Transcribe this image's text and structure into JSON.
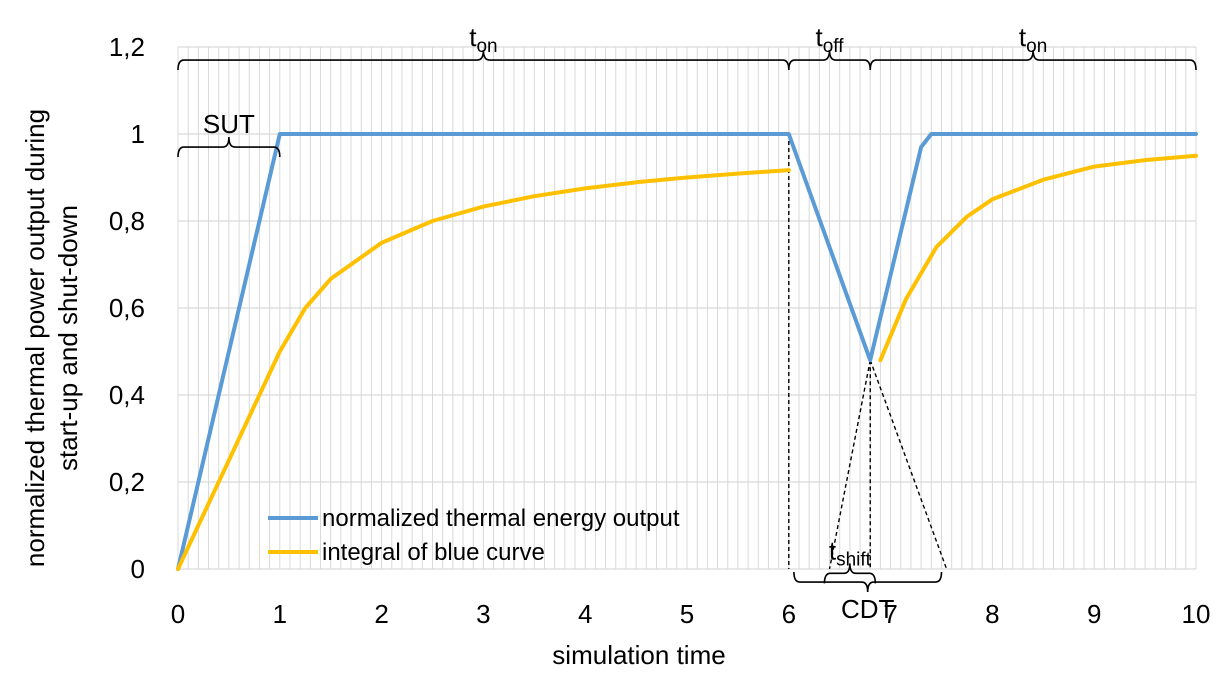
{
  "chart_data": {
    "type": "line",
    "title": "",
    "xlabel": "simulation time",
    "ylabel": [
      "normalized thermal power output during",
      "start-up and shut-down"
    ],
    "xlim": [
      0,
      10
    ],
    "ylim": [
      0,
      1.2
    ],
    "x_ticks": [
      {
        "value": 0,
        "label": "0"
      },
      {
        "value": 1,
        "label": "1"
      },
      {
        "value": 2,
        "label": "2"
      },
      {
        "value": 3,
        "label": "3"
      },
      {
        "value": 4,
        "label": "4"
      },
      {
        "value": 5,
        "label": "5"
      },
      {
        "value": 6,
        "label": "6"
      },
      {
        "value": 7,
        "label": "7"
      },
      {
        "value": 8,
        "label": "8"
      },
      {
        "value": 9,
        "label": "9"
      },
      {
        "value": 10,
        "label": "10"
      }
    ],
    "y_ticks": [
      {
        "value": 0,
        "label": "0"
      },
      {
        "value": 0.2,
        "label": "0,2"
      },
      {
        "value": 0.4,
        "label": "0,4"
      },
      {
        "value": 0.6,
        "label": "0,6"
      },
      {
        "value": 0.8,
        "label": "0,8"
      },
      {
        "value": 1,
        "label": "1"
      },
      {
        "value": 1.2,
        "label": "1,2"
      }
    ],
    "grid": {
      "vertical": "minor",
      "horizontal": "major"
    },
    "legend": {
      "position": "bottom-left"
    },
    "series": [
      {
        "name": "normalized thermal energy output",
        "color": "#5B9BD5",
        "segments": [
          [
            [
              0,
              0
            ],
            [
              1,
              1
            ],
            [
              6,
              1
            ],
            [
              6.8,
              0.48
            ],
            [
              7.3,
              0.97
            ],
            [
              7.4,
              1
            ],
            [
              10,
              1
            ]
          ]
        ]
      },
      {
        "name": "integral of blue curve",
        "color": "#FFC000",
        "segments": [
          [
            [
              0,
              0
            ],
            [
              0.25,
              0.125
            ],
            [
              0.5,
              0.25
            ],
            [
              0.75,
              0.375
            ],
            [
              1.0,
              0.5
            ],
            [
              1.25,
              0.6
            ],
            [
              1.5,
              0.667
            ],
            [
              2.0,
              0.75
            ],
            [
              2.5,
              0.8
            ],
            [
              3.0,
              0.833
            ],
            [
              3.5,
              0.857
            ],
            [
              4.0,
              0.875
            ],
            [
              4.5,
              0.889
            ],
            [
              5.0,
              0.9
            ],
            [
              5.5,
              0.909
            ],
            [
              6.0,
              0.917
            ]
          ],
          [
            [
              6.9,
              0.48
            ],
            [
              7.15,
              0.62
            ],
            [
              7.45,
              0.74
            ],
            [
              7.75,
              0.81
            ],
            [
              8.0,
              0.85
            ],
            [
              8.5,
              0.895
            ],
            [
              9.0,
              0.925
            ],
            [
              9.5,
              0.94
            ],
            [
              10.0,
              0.95
            ]
          ]
        ]
      }
    ],
    "brackets": [
      {
        "from": 0,
        "to": 6,
        "y": 1.17,
        "direction": "up",
        "label": "t",
        "sub": "on"
      },
      {
        "from": 6,
        "to": 6.8,
        "y": 1.17,
        "direction": "up",
        "label": "t",
        "sub": "off"
      },
      {
        "from": 6.8,
        "to": 10,
        "y": 1.17,
        "direction": "up",
        "label": "t",
        "sub": "on"
      },
      {
        "from": 0,
        "to": 1,
        "y": 0.97,
        "direction": "up",
        "label": "SUT",
        "sub": ""
      },
      {
        "from": 6.35,
        "to": 6.85,
        "y": -0.01,
        "direction": "up",
        "label": "t",
        "sub": "shift"
      },
      {
        "from": 6.05,
        "to": 7.5,
        "y": -0.03,
        "direction": "down",
        "label": "CDT",
        "sub": ""
      }
    ],
    "guide_lines": [
      [
        [
          6,
          1
        ],
        [
          6,
          0
        ]
      ],
      [
        [
          6.8,
          0.48
        ],
        [
          6.8,
          0
        ]
      ],
      [
        [
          6.8,
          0.48
        ],
        [
          6.4,
          0
        ]
      ],
      [
        [
          6.8,
          0.48
        ],
        [
          7.55,
          0
        ]
      ]
    ]
  }
}
